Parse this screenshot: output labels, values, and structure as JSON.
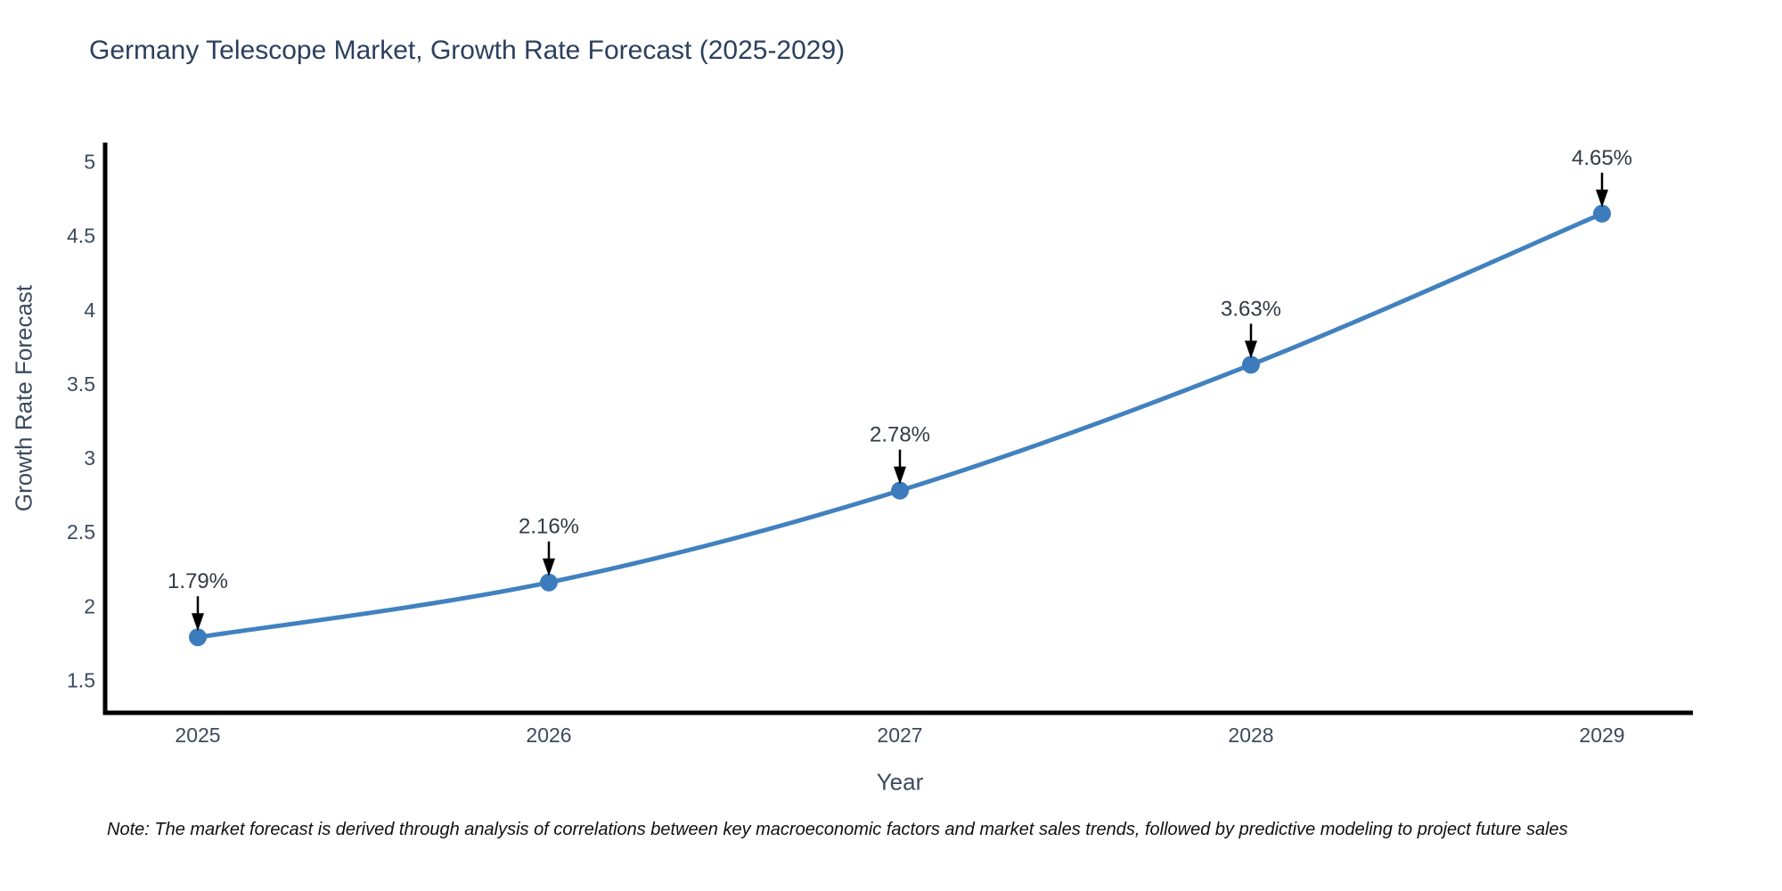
{
  "chart": {
    "title": "Germany Telescope Market, Growth Rate Forecast (2025-2029)",
    "note": "Note: The market forecast is derived through analysis of correlations between key macroeconomic factors and market sales trends, followed by predictive modeling to project future sales"
  },
  "chart_data": {
    "type": "line",
    "title": "Germany Telescope Market, Growth Rate Forecast (2025-2029)",
    "categories": [
      "2025",
      "2026",
      "2027",
      "2028",
      "2029"
    ],
    "values": [
      1.79,
      2.16,
      2.78,
      3.63,
      4.65
    ],
    "point_labels": [
      "1.79%",
      "2.16%",
      "2.78%",
      "3.63%",
      "4.65%"
    ],
    "xlabel": "Year",
    "ylabel": "Growth Rate Forecast",
    "ylim": [
      1.28,
      5.13
    ],
    "yticks": [
      1.5,
      2,
      2.5,
      3,
      3.5,
      4,
      4.5,
      5
    ],
    "grid": false,
    "legend": "none",
    "line_color": "#4181bf",
    "marker_color": "#3c7cbd",
    "axis_color": "#000000",
    "tick_color": "#3c4a5d",
    "annotation_color": "#333a45",
    "arrow_color": "#000000"
  }
}
